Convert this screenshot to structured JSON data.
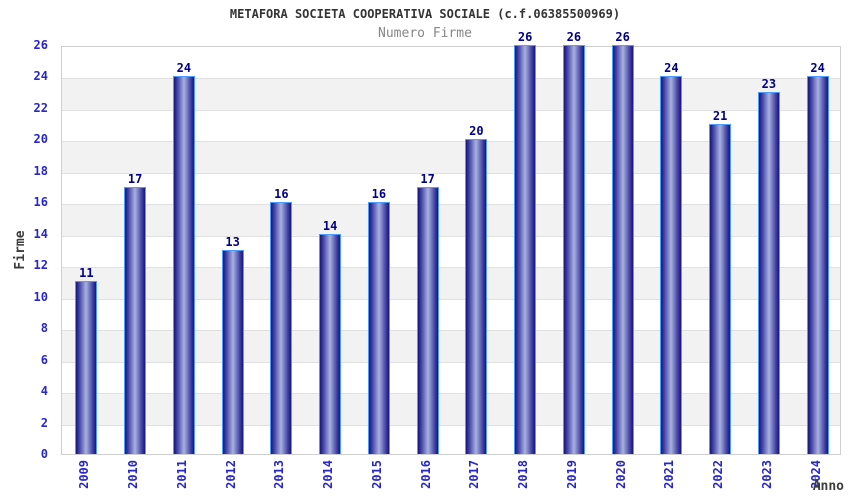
{
  "header": {
    "title": "METAFORA SOCIETA COOPERATIVA SOCIALE (c.f.06385500969)",
    "subtitle": "Numero Firme"
  },
  "chart_data": {
    "type": "bar",
    "title": "METAFORA SOCIETA COOPERATIVA SOCIALE (c.f.06385500969)",
    "subtitle": "Numero Firme",
    "categories": [
      "2009",
      "2010",
      "2011",
      "2012",
      "2013",
      "2014",
      "2015",
      "2016",
      "2017",
      "2018",
      "2019",
      "2020",
      "2021",
      "2022",
      "2023",
      "2024"
    ],
    "values": [
      11,
      17,
      24,
      13,
      16,
      14,
      16,
      17,
      20,
      26,
      26,
      26,
      24,
      21,
      23,
      24
    ],
    "xlabel": "Anno",
    "ylabel": "Firme",
    "ylim": [
      0,
      26
    ],
    "ytick_step": 2,
    "yticks": [
      0,
      2,
      4,
      6,
      8,
      10,
      12,
      14,
      16,
      18,
      20,
      22,
      24,
      26
    ],
    "grid": "alternating-horizontal-bands",
    "legend": "none",
    "colors": {
      "bar_edge_dark": "#17177a",
      "bar_mid": "#3b3ba0",
      "bar_center_light": "#a9b1e0",
      "bar_border": "#4f9cff",
      "value_label": "#000088",
      "tick_label": "#2626cc",
      "band_gray": "#f2f2f2",
      "band_white": "#ffffff",
      "gridline": "#e0e0e0",
      "plot_border": "#cfcfcf",
      "title_color": "#333333",
      "subtitle_color": "#878787",
      "axis_title_color": "#3d3d3d",
      "background": "#ffffff"
    }
  }
}
